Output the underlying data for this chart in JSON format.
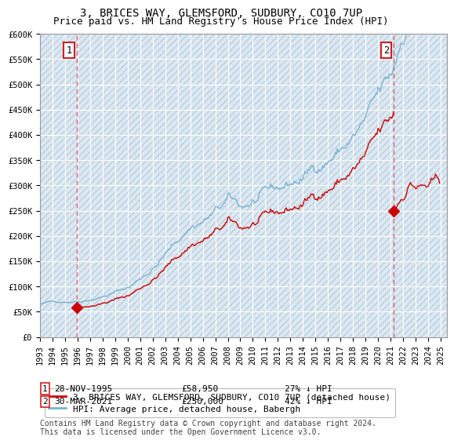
{
  "title": "3, BRICES WAY, GLEMSFORD, SUDBURY, CO10 7UP",
  "subtitle": "Price paid vs. HM Land Registry's House Price Index (HPI)",
  "ylim": [
    0,
    600000
  ],
  "yticks": [
    0,
    50000,
    100000,
    150000,
    200000,
    250000,
    300000,
    350000,
    400000,
    450000,
    500000,
    550000,
    600000
  ],
  "t1_year": 1995.92,
  "t1_price": 58950,
  "t2_year": 2021.25,
  "t2_price": 250000,
  "hpi_color": "#7ab3d4",
  "price_color": "#cc0000",
  "dashed_line_color": "#e06060",
  "background_color": "#dce8f2",
  "hatch_color": "#bccfdc",
  "legend_entry1": "3, BRICES WAY, GLEMSFORD, SUDBURY, CO10 7UP (detached house)",
  "legend_entry2": "HPI: Average price, detached house, Babergh",
  "footnote": "Contains HM Land Registry data © Crown copyright and database right 2024.\nThis data is licensed under the Open Government Licence v3.0.",
  "title_fontsize": 10,
  "tick_fontsize": 7.5,
  "legend_fontsize": 8
}
